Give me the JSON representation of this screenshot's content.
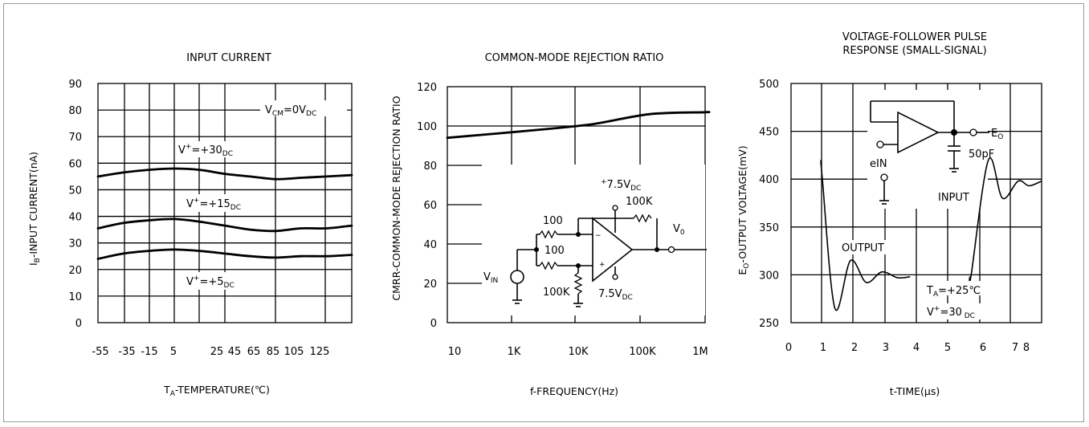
{
  "chart_data": [
    {
      "type": "line",
      "title": "INPUT CURRENT",
      "xlabel": "T_A-TEMPERATURE(℃)",
      "ylabel": "I_B-INPUT CURRENT(nA)",
      "x_tick_labels": [
        "-55",
        "-35",
        "-15",
        "5",
        "25",
        "45",
        "65",
        "85",
        "105",
        "125"
      ],
      "y_tick_labels": [
        "0",
        "10",
        "20",
        "30",
        "40",
        "50",
        "60",
        "70",
        "80",
        "90"
      ],
      "ylim": [
        0,
        90
      ],
      "annotations": [
        "VCM=0VDC",
        "V+=+30DC",
        "V+=+15DC",
        "V+=+5DC"
      ],
      "series": [
        {
          "name": "V+=+30DC",
          "x": [
            -55,
            -35,
            -15,
            5,
            25,
            45,
            65,
            85,
            105,
            125,
            145
          ],
          "y": [
            55,
            56.5,
            57.5,
            58,
            57.5,
            56,
            55,
            54,
            54.5,
            55,
            55.5
          ]
        },
        {
          "name": "V+=+15DC",
          "x": [
            -55,
            -35,
            -15,
            5,
            25,
            45,
            65,
            85,
            105,
            125,
            145
          ],
          "y": [
            35.5,
            37.5,
            38.5,
            39,
            38,
            36.5,
            35,
            34.5,
            35.5,
            35.5,
            36.5
          ]
        },
        {
          "name": "V+=+5DC",
          "x": [
            -55,
            -35,
            -15,
            5,
            25,
            45,
            65,
            85,
            105,
            125,
            145
          ],
          "y": [
            24,
            26,
            27,
            27.5,
            27,
            26,
            25,
            24.5,
            25,
            25,
            25.5
          ]
        }
      ]
    },
    {
      "type": "line",
      "title": "COMMON-MODE REJECTION RATIO",
      "xlabel": "f-FREQUENCY(Hz)",
      "ylabel": "CMRR-COMMON-MODE REJECTION RATIO",
      "x_tick_labels": [
        "10",
        "1K",
        "10K",
        "100K",
        "1M"
      ],
      "y_tick_labels": [
        "0",
        "20",
        "40",
        "60",
        "80",
        "100",
        "120"
      ],
      "ylim": [
        0,
        120
      ],
      "series": [
        {
          "x": [
            100,
            1000,
            10000,
            100000,
            1000000
          ],
          "y": [
            94,
            98,
            101,
            106,
            107
          ]
        }
      ],
      "circuit_labels": [
        "+7.5VDC",
        "100K",
        "100",
        "100",
        "V0",
        "VIN",
        "100K",
        "7.5VDC"
      ]
    },
    {
      "type": "line",
      "title": "VOLTAGE-FOLLOWER PULSE RESPONSE (SMALL-SIGNAL)",
      "xlabel": "t-TIME(μs)",
      "ylabel": "EO-OUTPUT VOLTAGE(mV)",
      "x_tick_labels": [
        "0",
        "1",
        "2",
        "3",
        "4",
        "5",
        "6",
        "7",
        "8"
      ],
      "y_tick_labels": [
        "250",
        "300",
        "350",
        "400",
        "450",
        "500"
      ],
      "ylim": [
        250,
        500
      ],
      "annotations": [
        "OUTPUT",
        "INPUT",
        "TA=+25℃",
        "V+=30DC",
        "EO",
        "50pF",
        "eIN"
      ],
      "series": [
        {
          "name": "OUTPUT",
          "x": [
            1.0,
            1.4,
            1.9,
            2.4,
            2.9,
            3.4
          ],
          "y": [
            400,
            265,
            315,
            292,
            303,
            297
          ]
        },
        {
          "name": "INPUT",
          "x": [
            5.75,
            6.3,
            6.75,
            7.25,
            7.6
          ],
          "y": [
            300,
            420,
            380,
            398,
            393
          ]
        }
      ]
    }
  ]
}
